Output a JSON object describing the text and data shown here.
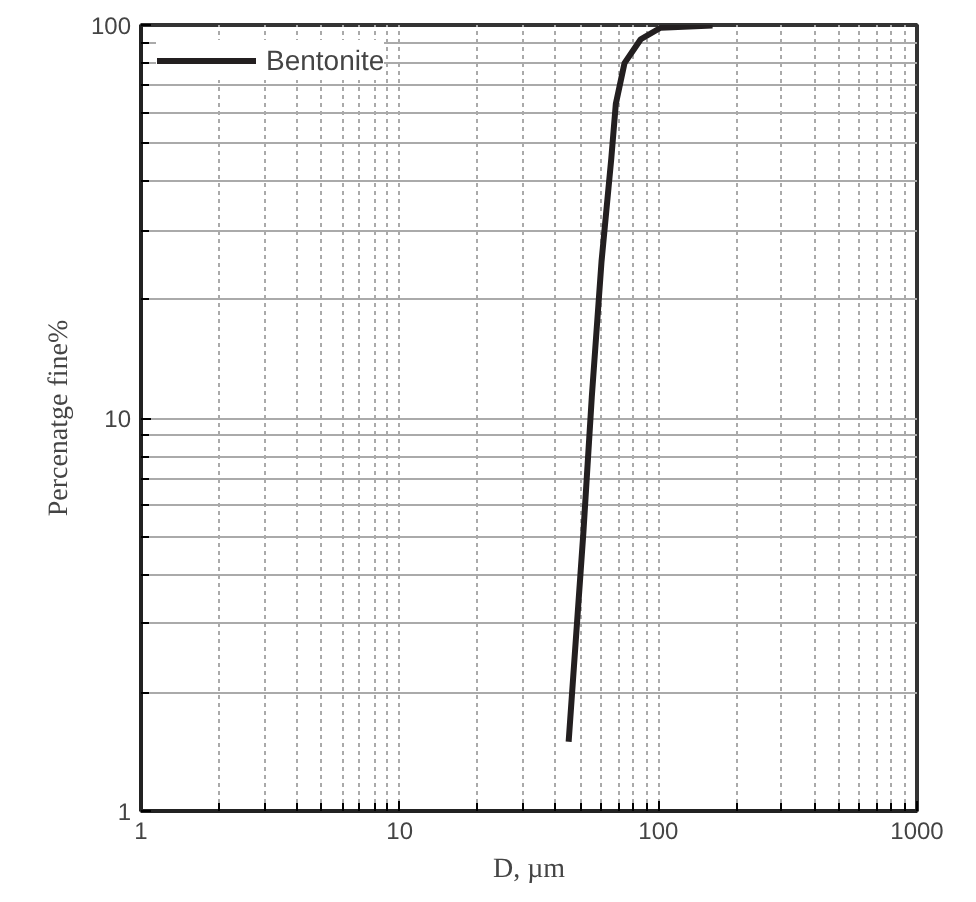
{
  "chart_data": {
    "type": "line",
    "xlabel": "D, µm",
    "ylabel": "Percenatge fine%",
    "log": "xy",
    "xlim": [
      1,
      1000
    ],
    "ylim": [
      1,
      100
    ],
    "xticks": [
      1,
      10,
      100,
      1000
    ],
    "yticks": [
      1,
      10,
      100
    ],
    "grid": true,
    "legend": "top left",
    "marker": "none",
    "line_style": "solid",
    "series": [
      {
        "name": "Bentonite",
        "color": "#231f20",
        "x": [
          45,
          51.3,
          55.3,
          60.3,
          65.8,
          68.5,
          74,
          85.5,
          102,
          162
        ],
        "values": [
          1.5,
          5.1,
          11.3,
          25,
          45.8,
          63,
          80,
          92,
          98.4,
          99.7
        ]
      }
    ]
  }
}
